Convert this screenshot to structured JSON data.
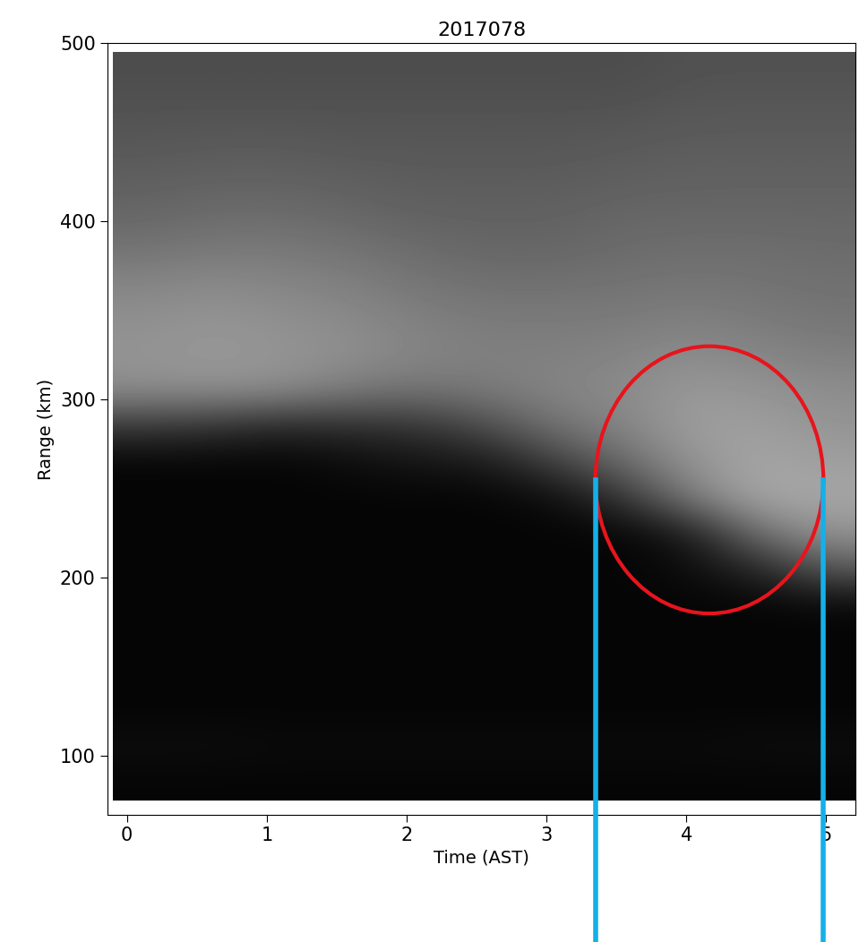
{
  "chart_data": {
    "type": "heatmap",
    "title": "2017078",
    "x_label": "Time (AST)",
    "y_label": "Range (km)",
    "xlim": [
      -0.14,
      5.21
    ],
    "ylim": [
      67,
      500
    ],
    "xticks": [
      0,
      1,
      2,
      3,
      4,
      5
    ],
    "yticks": [
      100,
      200,
      300,
      400,
      500
    ],
    "image_x": [
      -0.1,
      5.25
    ],
    "image_y": [
      75,
      495
    ],
    "zlim": [
      0,
      1
    ],
    "cells": [
      [
        0.3,
        0.3,
        0.3,
        0.3,
        0.3,
        0.3,
        0.3,
        0.3,
        0.32,
        0.32,
        0.32
      ],
      [
        0.32,
        0.32,
        0.32,
        0.32,
        0.32,
        0.32,
        0.32,
        0.32,
        0.34,
        0.34,
        0.34
      ],
      [
        0.34,
        0.35,
        0.35,
        0.34,
        0.34,
        0.34,
        0.34,
        0.35,
        0.36,
        0.36,
        0.36
      ],
      [
        0.37,
        0.38,
        0.38,
        0.37,
        0.36,
        0.36,
        0.36,
        0.37,
        0.38,
        0.38,
        0.38
      ],
      [
        0.4,
        0.42,
        0.42,
        0.4,
        0.38,
        0.38,
        0.38,
        0.4,
        0.4,
        0.4,
        0.4
      ],
      [
        0.45,
        0.47,
        0.47,
        0.45,
        0.42,
        0.4,
        0.4,
        0.42,
        0.43,
        0.43,
        0.42
      ],
      [
        0.52,
        0.54,
        0.52,
        0.5,
        0.46,
        0.44,
        0.44,
        0.45,
        0.46,
        0.45,
        0.44
      ],
      [
        0.56,
        0.58,
        0.56,
        0.54,
        0.5,
        0.48,
        0.48,
        0.48,
        0.5,
        0.48,
        0.46
      ],
      [
        0.58,
        0.6,
        0.58,
        0.56,
        0.52,
        0.5,
        0.5,
        0.52,
        0.55,
        0.52,
        0.5
      ],
      [
        0.55,
        0.56,
        0.55,
        0.48,
        0.45,
        0.48,
        0.52,
        0.54,
        0.6,
        0.58,
        0.55
      ],
      [
        0.22,
        0.2,
        0.15,
        0.18,
        0.2,
        0.3,
        0.45,
        0.52,
        0.62,
        0.62,
        0.58
      ],
      [
        0.02,
        0.02,
        0.02,
        0.05,
        0.08,
        0.1,
        0.25,
        0.42,
        0.58,
        0.65,
        0.62
      ],
      [
        0.02,
        0.02,
        0.02,
        0.02,
        0.02,
        0.02,
        0.05,
        0.2,
        0.5,
        0.66,
        0.65
      ],
      [
        0.02,
        0.02,
        0.02,
        0.02,
        0.02,
        0.02,
        0.02,
        0.02,
        0.1,
        0.45,
        0.58
      ],
      [
        0.02,
        0.02,
        0.02,
        0.02,
        0.02,
        0.02,
        0.02,
        0.02,
        0.05,
        0.15,
        0.35
      ],
      [
        0.02,
        0.02,
        0.02,
        0.02,
        0.02,
        0.02,
        0.02,
        0.02,
        0.02,
        0.02,
        0.03
      ],
      [
        0.02,
        0.02,
        0.02,
        0.02,
        0.02,
        0.02,
        0.02,
        0.02,
        0.02,
        0.02,
        0.02
      ],
      [
        0.02,
        0.02,
        0.02,
        0.02,
        0.02,
        0.02,
        0.02,
        0.02,
        0.02,
        0.02,
        0.02
      ],
      [
        0.02,
        0.02,
        0.02,
        0.02,
        0.02,
        0.02,
        0.02,
        0.02,
        0.02,
        0.02,
        0.02
      ],
      [
        0.05,
        0.05,
        0.04,
        0.04,
        0.04,
        0.04,
        0.04,
        0.04,
        0.04,
        0.05,
        0.05
      ],
      [
        0.02,
        0.02,
        0.02,
        0.02,
        0.02,
        0.02,
        0.02,
        0.02,
        0.02,
        0.02,
        0.02
      ]
    ],
    "circle": {
      "x": [
        3.35,
        4.98
      ],
      "y": [
        180,
        330
      ],
      "color": "#e8141c"
    },
    "vlines": {
      "x": [
        3.35,
        4.98
      ],
      "top": 255,
      "color": "#13b0ea"
    }
  }
}
